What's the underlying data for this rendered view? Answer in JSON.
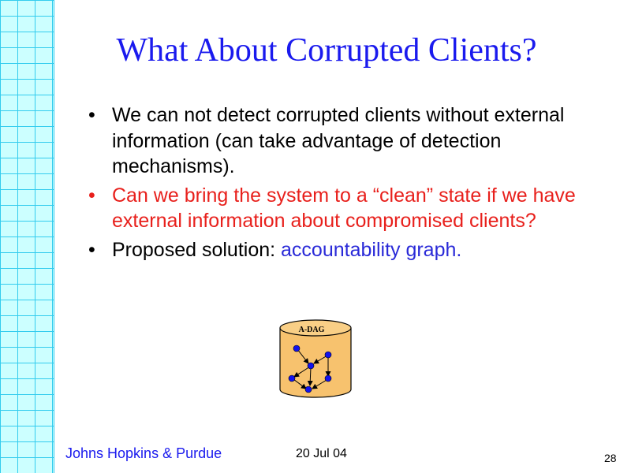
{
  "slide": {
    "title": "What About Corrupted Clients?",
    "bullets": [
      {
        "text": "We can not detect corrupted clients without external information (can take advantage of detection mechanisms).",
        "color": "#000000"
      },
      {
        "text": "Can we bring the system to a “clean” state if we have external information about compromised clients?",
        "color": "#e8201c"
      },
      {
        "text_prefix": "Proposed solution: ",
        "text_highlight": "accountability graph.",
        "color": "#000000",
        "highlight_color": "#2a2ad8"
      }
    ],
    "figure": {
      "label": "A-DAG",
      "icon": "database-cylinder-icon",
      "fill_color": "#f7c26e",
      "node_color": "#1212ee"
    },
    "footer": {
      "organization": "Johns Hopkins & Purdue",
      "date": "20 Jul 04",
      "page_number": "28"
    }
  }
}
